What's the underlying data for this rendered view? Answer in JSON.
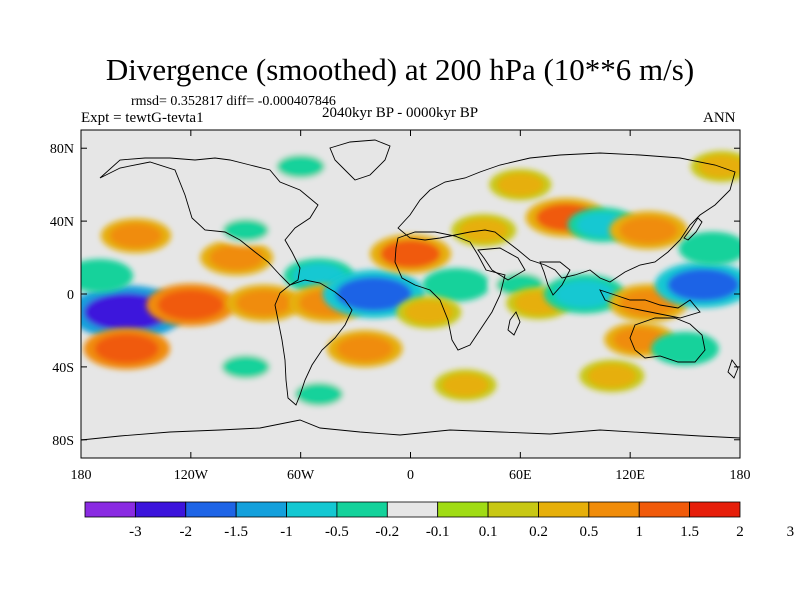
{
  "chart_data": {
    "type": "heatmap",
    "title": "Divergence (smoothed) at 200 hPa (10**6 m/s)",
    "stats_label": "rmsd= 0.352817  diff= -0.000407846",
    "experiment_label": "Expt = tewtG-tevta1",
    "period_label": "2040kyr BP - 0000kyr BP",
    "season_label": "ANN",
    "x_ticks": [
      {
        "value": -180,
        "label": "180"
      },
      {
        "value": -120,
        "label": "120W"
      },
      {
        "value": -60,
        "label": "60W"
      },
      {
        "value": 0,
        "label": "0"
      },
      {
        "value": 60,
        "label": "60E"
      },
      {
        "value": 120,
        "label": "120E"
      },
      {
        "value": 180,
        "label": "180"
      }
    ],
    "y_ticks": [
      {
        "value": 80,
        "label": "80N"
      },
      {
        "value": 40,
        "label": "40N"
      },
      {
        "value": 0,
        "label": "0"
      },
      {
        "value": -40,
        "label": "40S"
      },
      {
        "value": -80,
        "label": "80S"
      }
    ],
    "xlim": [
      -180,
      180
    ],
    "ylim": [
      -90,
      90
    ],
    "colorbar": {
      "colors": [
        "#8a2be2",
        "#3c14dc",
        "#1e64e6",
        "#14a0dc",
        "#14c8d2",
        "#14d29b",
        "#e6e6e6",
        "#a0dc14",
        "#c8c814",
        "#e6af0a",
        "#f08c0a",
        "#f05a0a",
        "#e61e0a"
      ],
      "labels": [
        "-3",
        "-2",
        "-1.5",
        "-1",
        "-0.5",
        "-0.2",
        "-0.1",
        "0.1",
        "0.2",
        "0.5",
        "1",
        "1.5",
        "2",
        "3"
      ]
    },
    "anomalies": [
      {
        "lon": -155,
        "lat": -10,
        "value": -2.3
      },
      {
        "lon": -120,
        "lat": -6,
        "value": 1.3
      },
      {
        "lon": -150,
        "lat": 32,
        "value": 0.6
      },
      {
        "lon": -155,
        "lat": -30,
        "value": 1.2
      },
      {
        "lon": -80,
        "lat": -5,
        "value": 0.8
      },
      {
        "lon": -95,
        "lat": 20,
        "value": 0.7
      },
      {
        "lon": -50,
        "lat": 10,
        "value": -0.6
      },
      {
        "lon": -45,
        "lat": -5,
        "value": 0.9
      },
      {
        "lon": -20,
        "lat": 0,
        "value": -1.8
      },
      {
        "lon": -25,
        "lat": -30,
        "value": 0.8
      },
      {
        "lon": 0,
        "lat": 22,
        "value": 1.0
      },
      {
        "lon": 25,
        "lat": 5,
        "value": -0.5
      },
      {
        "lon": 10,
        "lat": -10,
        "value": 0.4
      },
      {
        "lon": 40,
        "lat": 35,
        "value": 0.4
      },
      {
        "lon": 60,
        "lat": 5,
        "value": -0.4
      },
      {
        "lon": 70,
        "lat": -5,
        "value": 0.4
      },
      {
        "lon": 85,
        "lat": 42,
        "value": 1.0
      },
      {
        "lon": 105,
        "lat": 38,
        "value": -0.6
      },
      {
        "lon": 95,
        "lat": 0,
        "value": -1.0
      },
      {
        "lon": 130,
        "lat": -5,
        "value": 0.9
      },
      {
        "lon": 160,
        "lat": 5,
        "value": -1.6
      },
      {
        "lon": 130,
        "lat": 35,
        "value": 0.9
      },
      {
        "lon": 165,
        "lat": 25,
        "value": -0.5
      },
      {
        "lon": 125,
        "lat": -25,
        "value": 0.6
      },
      {
        "lon": -90,
        "lat": 35,
        "value": -0.3
      },
      {
        "lon": -60,
        "lat": 70,
        "value": -0.4
      },
      {
        "lon": 150,
        "lat": -30,
        "value": -0.5
      },
      {
        "lon": -50,
        "lat": -55,
        "value": -0.4
      },
      {
        "lon": 30,
        "lat": -50,
        "value": 0.3
      },
      {
        "lon": -90,
        "lat": -40,
        "value": -0.4
      },
      {
        "lon": 110,
        "lat": -45,
        "value": 0.4
      },
      {
        "lon": -170,
        "lat": 10,
        "value": -0.5
      },
      {
        "lon": 60,
        "lat": 60,
        "value": 0.3
      },
      {
        "lon": 170,
        "lat": 70,
        "value": 0.3
      }
    ]
  }
}
